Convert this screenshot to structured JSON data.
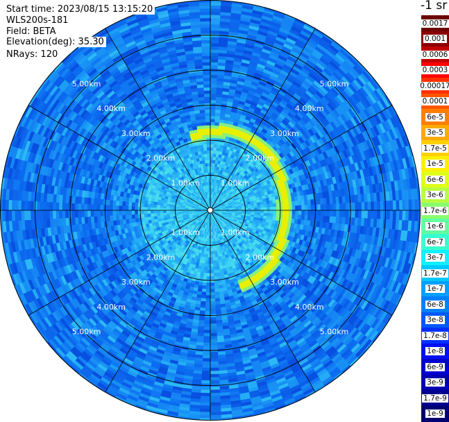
{
  "header": {
    "start_time": "Start time: 2023/08/15 13:15:20",
    "instrument": "WLS200s-181",
    "field": "Field: BETA",
    "elevation": "Elevation(deg): 35.30",
    "nrays": "NRays: 120"
  },
  "colorbar": {
    "title": "-1 sr",
    "labels": [
      "0.0017",
      "0.001",
      "0.0006",
      "0.0003",
      "0.00017",
      "0.0001",
      "6e-5",
      "3e-5",
      "1.7e-5",
      "1e-5",
      "6e-6",
      "3e-6",
      "1.7e-6",
      "1e-6",
      "6e-7",
      "3e-7",
      "1.7e-7",
      "1e-7",
      "6e-8",
      "3e-8",
      "1.7e-8",
      "1e-8",
      "6e-9",
      "3e-9",
      "1.7e-9",
      "1e-9"
    ],
    "colors": [
      "#6b0000",
      "#8b0000",
      "#c00000",
      "#ff0000",
      "#ff3000",
      "#ff5500",
      "#ff7f00",
      "#ffaa00",
      "#ffd000",
      "#fff000",
      "#e0ff18",
      "#b8ff40",
      "#8aff6e",
      "#60ffa0",
      "#38ffcf",
      "#10f0ff",
      "#00c8ff",
      "#00a0ff",
      "#0080ff",
      "#0058ff",
      "#0030ff",
      "#0010f0",
      "#0000d0",
      "#0000b0",
      "#000090",
      "#000070"
    ]
  },
  "chart_data": {
    "type": "heatmap",
    "projection": "polar",
    "range_unit": "km",
    "range_max_km": 6.0,
    "range_rings_km": [
      1.0,
      2.0,
      3.0,
      4.0,
      5.0
    ],
    "ring_labels": [
      "1.00km",
      "2.00km",
      "3.00km",
      "4.00km",
      "5.00km"
    ],
    "radial_lines": 12,
    "n_rays": 120,
    "colors": {
      "background_low": "#0a6cf0",
      "mid": "#1e9cf4",
      "near_field": "#34c6f4",
      "arc": "#e8f000",
      "arc_edge": "#8af07c"
    },
    "features": {
      "aerosol_layer_range_km": 2.2,
      "aerosol_layer_azimuth_deg": [
        -15,
        160
      ],
      "aerosol_layer_value_sr": 1.7e-05
    }
  }
}
